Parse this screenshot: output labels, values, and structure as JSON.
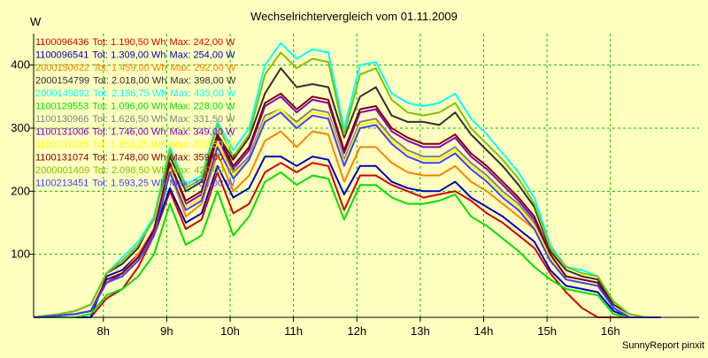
{
  "chart_data": {
    "type": "line",
    "title": "Wechselrichtervergleich vom 01.11.2009",
    "ylabel": "W",
    "xlabel": "",
    "footer": "SunnyReport pinxit",
    "x_ticks": [
      "8h",
      "9h",
      "10h",
      "11h",
      "12h",
      "13h",
      "14h",
      "15h",
      "16h"
    ],
    "y_ticks": [
      100,
      200,
      300,
      400
    ],
    "ylim": [
      0,
      450
    ],
    "x_range_hours": [
      6.9,
      17.4
    ],
    "grid": true,
    "colors": {
      "background": "#ffffc0",
      "grid": "#00c000",
      "axis": "#000000"
    },
    "x": [
      6.9,
      7.3,
      7.55,
      7.8,
      8.05,
      8.3,
      8.55,
      8.8,
      9.05,
      9.3,
      9.55,
      9.8,
      10.05,
      10.3,
      10.55,
      10.8,
      11.05,
      11.3,
      11.55,
      11.8,
      12.05,
      12.3,
      12.55,
      12.8,
      13.05,
      13.3,
      13.55,
      13.8,
      14.05,
      14.3,
      14.55,
      14.8,
      15.05,
      15.3,
      15.55,
      15.8,
      16.05,
      16.3,
      16.55,
      16.8
    ],
    "series": [
      {
        "name": "1100096436",
        "total": "Tot: 1.190,50 Wh",
        "max": "Max: 242,00 W",
        "color": "#d00000",
        "values": [
          0,
          0,
          0,
          0,
          30,
          45,
          80,
          130,
          200,
          140,
          155,
          230,
          165,
          180,
          230,
          245,
          230,
          245,
          240,
          170,
          225,
          225,
          210,
          200,
          190,
          195,
          200,
          185,
          165,
          150,
          130,
          110,
          70,
          40,
          15,
          0,
          0,
          0,
          0,
          0
        ]
      },
      {
        "name": "1100096541",
        "total": "Tot: 1.309,00 Wh",
        "max": "Max: 254,00 W",
        "color": "#0000c0",
        "values": [
          0,
          0,
          0,
          0,
          65,
          75,
          100,
          135,
          205,
          150,
          165,
          240,
          190,
          205,
          255,
          255,
          240,
          255,
          250,
          195,
          240,
          240,
          215,
          205,
          200,
          200,
          215,
          190,
          175,
          160,
          140,
          120,
          75,
          50,
          45,
          40,
          10,
          0,
          0,
          0
        ]
      },
      {
        "name": "2000150622",
        "total": "Tot: 1.459,00 Wh",
        "max": "Max: 292,00 W",
        "color": "#ff8000",
        "values": [
          0,
          3,
          5,
          10,
          60,
          70,
          100,
          140,
          230,
          160,
          180,
          260,
          200,
          225,
          280,
          295,
          270,
          295,
          290,
          215,
          270,
          270,
          245,
          230,
          225,
          225,
          240,
          215,
          200,
          180,
          160,
          140,
          90,
          60,
          55,
          50,
          15,
          0,
          0,
          0
        ]
      },
      {
        "name": "2000154799",
        "total": "Tot: 2.018,00 Wh",
        "max": "Max: 398,00 W",
        "color": "#303030",
        "values": [
          0,
          5,
          10,
          20,
          70,
          85,
          110,
          160,
          255,
          200,
          215,
          290,
          250,
          285,
          355,
          395,
          365,
          370,
          365,
          285,
          350,
          365,
          320,
          310,
          310,
          305,
          325,
          290,
          265,
          240,
          210,
          175,
          105,
          75,
          65,
          60,
          20,
          5,
          0,
          0
        ]
      },
      {
        "name": "2000149892",
        "total": "Tot: 2.196,75 Wh",
        "max": "Max: 435,00 W",
        "color": "#00ffff",
        "values": [
          0,
          5,
          10,
          20,
          70,
          95,
          120,
          160,
          270,
          210,
          225,
          310,
          265,
          300,
          400,
          435,
          410,
          425,
          420,
          300,
          400,
          405,
          355,
          340,
          335,
          340,
          355,
          315,
          290,
          260,
          230,
          190,
          115,
          80,
          75,
          65,
          25,
          5,
          0,
          0
        ]
      },
      {
        "name": "1100129553",
        "total": "Tot: 1.096,00 Wh",
        "max": "Max: 228,00 W",
        "color": "#00e000",
        "values": [
          0,
          0,
          0,
          5,
          35,
          45,
          65,
          100,
          180,
          115,
          130,
          200,
          130,
          160,
          215,
          230,
          210,
          225,
          220,
          155,
          210,
          210,
          190,
          180,
          180,
          185,
          195,
          160,
          145,
          125,
          105,
          80,
          60,
          45,
          40,
          35,
          5,
          0,
          0,
          0
        ]
      },
      {
        "name": "1100130966",
        "total": "Tot: 1.626,50 Wh",
        "max": "Max: 331,50 W",
        "color": "#808080",
        "values": [
          0,
          3,
          5,
          10,
          55,
          65,
          90,
          130,
          235,
          175,
          190,
          275,
          230,
          255,
          320,
          330,
          310,
          330,
          325,
          250,
          310,
          315,
          285,
          265,
          255,
          255,
          270,
          245,
          225,
          200,
          180,
          150,
          95,
          60,
          55,
          50,
          15,
          0,
          0,
          0
        ]
      },
      {
        "name": "1100131006",
        "total": "Tot: 1.746,00 Wh",
        "max": "Max: 349,00 W",
        "color": "#8000c0",
        "values": [
          0,
          3,
          5,
          10,
          55,
          70,
          95,
          135,
          240,
          180,
          195,
          285,
          235,
          265,
          335,
          350,
          325,
          345,
          340,
          260,
          325,
          330,
          295,
          280,
          270,
          270,
          285,
          255,
          235,
          210,
          185,
          155,
          100,
          65,
          60,
          55,
          15,
          0,
          0,
          0
        ]
      },
      {
        "name": "1100131025",
        "total": "Tot: 1.653,25 Wh",
        "max": "Max: 332,50 W",
        "color": "#ffff00",
        "values": [
          0,
          3,
          5,
          10,
          55,
          65,
          90,
          130,
          235,
          175,
          190,
          275,
          225,
          250,
          315,
          330,
          305,
          325,
          320,
          245,
          305,
          310,
          280,
          260,
          250,
          250,
          265,
          240,
          220,
          195,
          175,
          145,
          95,
          60,
          55,
          50,
          15,
          0,
          0,
          0
        ]
      },
      {
        "name": "1100131074",
        "total": "Tot: 1.748,00 Wh",
        "max": "Max: 359,00 W",
        "color": "#800000",
        "values": [
          0,
          3,
          5,
          10,
          60,
          70,
          95,
          140,
          245,
          185,
          200,
          290,
          240,
          270,
          340,
          355,
          330,
          350,
          345,
          265,
          330,
          335,
          300,
          285,
          275,
          275,
          290,
          260,
          240,
          215,
          190,
          160,
          100,
          65,
          60,
          55,
          15,
          0,
          0,
          0
        ]
      },
      {
        "name": "2000001409",
        "total": "Tot: 2.098,50 Wh",
        "max": "Max: 420,00 W",
        "color": "#80c000",
        "values": [
          0,
          5,
          10,
          20,
          70,
          90,
          115,
          155,
          265,
          205,
          220,
          305,
          255,
          290,
          385,
          420,
          395,
          410,
          405,
          290,
          385,
          395,
          345,
          325,
          320,
          325,
          340,
          300,
          275,
          250,
          220,
          180,
          110,
          80,
          70,
          65,
          25,
          5,
          0,
          0
        ]
      },
      {
        "name": "1100213451",
        "total": "Tot: 1.593,25 Wh",
        "max": "Max: 331,00 W",
        "color": "#4040ff",
        "values": [
          0,
          3,
          5,
          10,
          55,
          65,
          90,
          130,
          230,
          170,
          185,
          270,
          220,
          250,
          310,
          325,
          300,
          320,
          315,
          240,
          300,
          305,
          275,
          255,
          245,
          245,
          260,
          235,
          215,
          190,
          170,
          140,
          90,
          60,
          55,
          50,
          15,
          0,
          0,
          0
        ]
      }
    ]
  }
}
